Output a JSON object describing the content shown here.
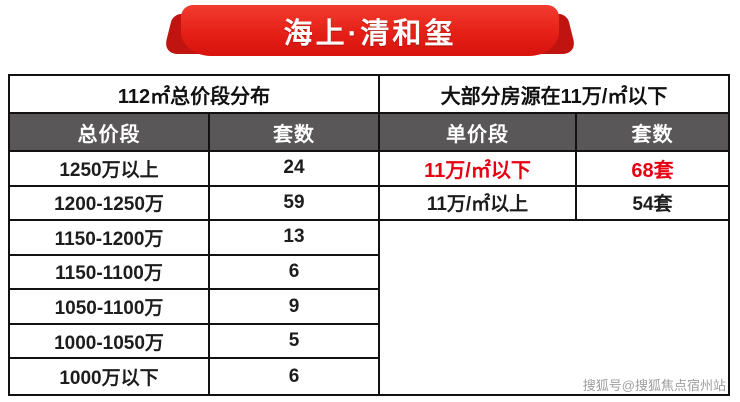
{
  "banner": {
    "title": "海上·清和玺"
  },
  "left_table": {
    "section_title": "112㎡总价段分布",
    "headers": [
      "总价段",
      "套数"
    ],
    "rows": [
      [
        "1250万以上",
        "24"
      ],
      [
        "1200-1250万",
        "59"
      ],
      [
        "1150-1200万",
        "13"
      ],
      [
        "1150-1100万",
        "6"
      ],
      [
        "1050-1100万",
        "9"
      ],
      [
        "1000-1050万",
        "5"
      ],
      [
        "1000万以下",
        "6"
      ]
    ]
  },
  "right_table": {
    "section_title": "大部分房源在11万/㎡以下",
    "headers": [
      "单价段",
      "套数"
    ],
    "rows": [
      [
        "11万/㎡以下",
        "68套"
      ],
      [
        "11万/㎡以上",
        "54套"
      ]
    ]
  },
  "watermark": "搜狐号@搜狐焦点宿州站",
  "colors": {
    "banner_red": "#e52017",
    "header_bg": "#595757",
    "highlight_red": "#e60012",
    "watermark_gray": "#9e9e9e",
    "border_black": "#121212"
  },
  "chart_data": [
    {
      "type": "table",
      "title": "112㎡总价段分布",
      "columns": [
        "总价段",
        "套数"
      ],
      "rows": [
        [
          "1250万以上",
          24
        ],
        [
          "1200-1250万",
          59
        ],
        [
          "1150-1200万",
          13
        ],
        [
          "1150-1100万",
          6
        ],
        [
          "1050-1100万",
          9
        ],
        [
          "1000-1050万",
          5
        ],
        [
          "1000万以下",
          6
        ]
      ]
    },
    {
      "type": "table",
      "title": "大部分房源在11万/㎡以下",
      "columns": [
        "单价段",
        "套数"
      ],
      "rows": [
        [
          "11万/㎡以下",
          "68套"
        ],
        [
          "11万/㎡以上",
          "54套"
        ]
      ],
      "highlight_row": 0
    }
  ]
}
